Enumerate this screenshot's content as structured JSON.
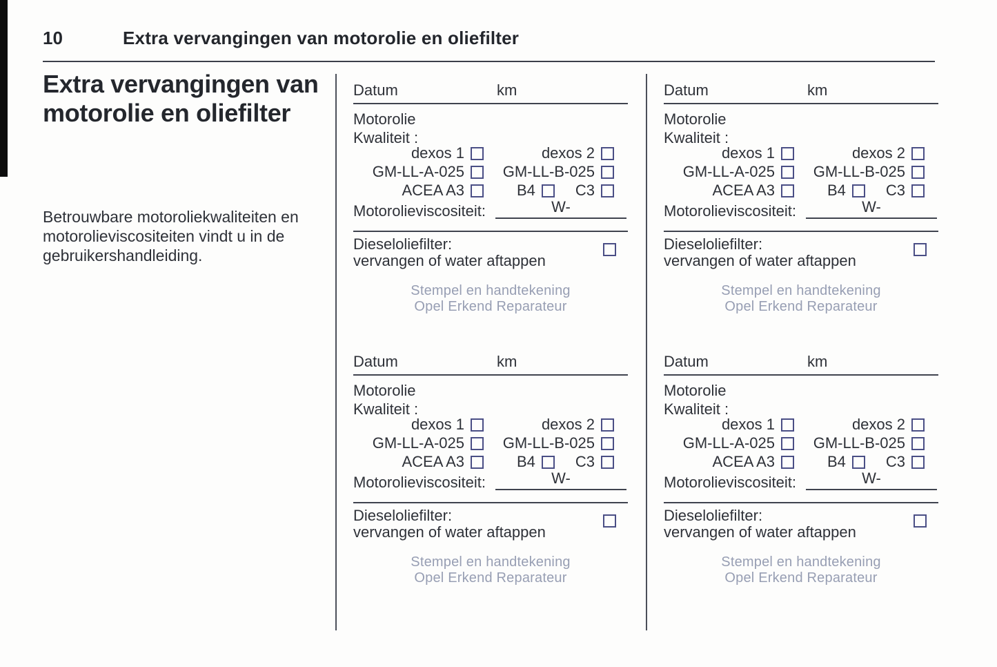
{
  "page": {
    "number": "10",
    "header_title": "Extra vervangingen van motorolie en oliefilter"
  },
  "sidebar": {
    "heading": "Extra vervangingen van motorolie en oliefilter",
    "note": "Betrouwbare motoroliekwaliteiten en motorolieviscositeiten vindt u in de gebruikershandleiding."
  },
  "form_block": {
    "datum_label": "Datum",
    "km_label": "km",
    "motorolie_label": "Motorolie",
    "kwaliteit_label": "Kwaliteit :",
    "quality": {
      "row1_left": "dexos 1",
      "row1_right": "dexos 2",
      "row2_left": "GM-LL-A-025",
      "row2_right": "GM-LL-B-025",
      "row3_left": "ACEA A3",
      "row3_right_a": "B4",
      "row3_right_b": "C3"
    },
    "viscositeit_label": "Motorolieviscositeit:",
    "viscositeit_value": "W-",
    "diesel_line1": "Dieseloliefilter:",
    "diesel_line2": "vervangen of water aftappen",
    "stamp_line1": "Stempel en handtekening",
    "stamp_line2": "Opel Erkend Reparateur"
  },
  "colors": {
    "text": "#2e3138",
    "rule_line": "#3f434e",
    "checkbox_border": "#4a4e85",
    "stamp_text": "#979eb3",
    "paper": "#fdfdfc"
  }
}
